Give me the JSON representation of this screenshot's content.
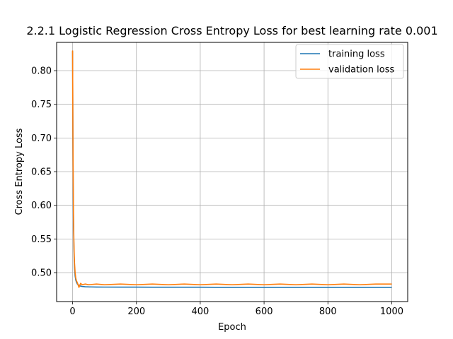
{
  "chart_data": {
    "type": "line",
    "title": "2.2.1 Logistic Regression Cross Entropy Loss for best learning rate 0.001",
    "xlabel": "Epoch",
    "ylabel": "Cross Entropy Loss",
    "xlim": [
      -50,
      1050
    ],
    "ylim": [
      0.457,
      0.842
    ],
    "xticks": [
      0,
      200,
      400,
      600,
      800,
      1000
    ],
    "yticks": [
      0.5,
      0.55,
      0.6,
      0.65,
      0.7,
      0.75,
      0.8
    ],
    "xtick_labels": [
      "0",
      "200",
      "400",
      "600",
      "800",
      "1000"
    ],
    "ytick_labels": [
      "0.50",
      "0.55",
      "0.60",
      "0.65",
      "0.70",
      "0.75",
      "0.80"
    ],
    "grid": true,
    "legend_position": "top-right",
    "series": [
      {
        "name": "training loss",
        "color": "#1f77b4",
        "x": [
          0,
          1,
          2,
          3,
          4,
          5,
          6,
          8,
          10,
          12,
          15,
          20,
          25,
          30,
          40,
          50,
          75,
          100,
          150,
          200,
          250,
          300,
          350,
          400,
          450,
          500,
          550,
          600,
          650,
          700,
          750,
          800,
          850,
          900,
          950,
          1000
        ],
        "y": [
          0.829,
          0.7,
          0.62,
          0.57,
          0.54,
          0.52,
          0.507,
          0.495,
          0.489,
          0.486,
          0.483,
          0.481,
          0.48,
          0.4795,
          0.479,
          0.4788,
          0.4786,
          0.4785,
          0.4784,
          0.4784,
          0.4783,
          0.4783,
          0.4783,
          0.4783,
          0.4782,
          0.4782,
          0.4782,
          0.4782,
          0.4782,
          0.4782,
          0.4782,
          0.4782,
          0.4782,
          0.4782,
          0.4782,
          0.4782
        ]
      },
      {
        "name": "validation loss",
        "color": "#ff7f0e",
        "x": [
          0,
          1,
          2,
          3,
          4,
          5,
          6,
          8,
          10,
          12,
          15,
          20,
          25,
          30,
          40,
          50,
          75,
          100,
          150,
          200,
          250,
          300,
          350,
          400,
          450,
          500,
          550,
          600,
          650,
          700,
          750,
          800,
          850,
          900,
          950,
          1000
        ],
        "y": [
          0.83,
          0.71,
          0.63,
          0.58,
          0.55,
          0.53,
          0.515,
          0.5,
          0.492,
          0.488,
          0.485,
          0.478,
          0.484,
          0.482,
          0.483,
          0.482,
          0.483,
          0.482,
          0.483,
          0.482,
          0.483,
          0.482,
          0.483,
          0.482,
          0.483,
          0.482,
          0.483,
          0.482,
          0.483,
          0.482,
          0.483,
          0.482,
          0.483,
          0.482,
          0.483,
          0.483
        ]
      }
    ]
  }
}
